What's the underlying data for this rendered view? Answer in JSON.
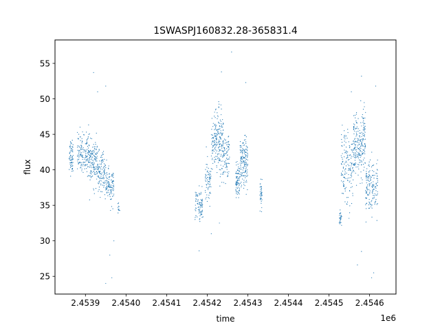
{
  "chart_data": {
    "type": "scatter",
    "title": "1SWASPJ160832.28-365831.4",
    "xlabel": "time",
    "ylabel": "flux",
    "x_offset_label": "1e6",
    "xlim": [
      2.453825,
      2.454665
    ],
    "ylim": [
      22.5,
      58.3
    ],
    "x_ticks": [
      2.4539,
      2.454,
      2.4541,
      2.4542,
      2.4543,
      2.4544,
      2.4545,
      2.4546
    ],
    "x_tick_labels": [
      "2.4539",
      "2.4540",
      "2.4541",
      "2.4542",
      "2.4543",
      "2.4544",
      "2.4545",
      "2.4546"
    ],
    "y_ticks": [
      25,
      30,
      35,
      40,
      45,
      50,
      55
    ],
    "y_tick_labels": [
      "25",
      "30",
      "35",
      "40",
      "45",
      "50",
      "55"
    ],
    "grid": false,
    "marker_color": "#1f77b4",
    "clusters": [
      {
        "x_start": 2.45386,
        "x_end": 2.45387,
        "y_center": 42.0,
        "spread": 1.2,
        "count": 70
      },
      {
        "x_start": 2.45388,
        "x_end": 2.45391,
        "y_center": 42.3,
        "spread": 1.4,
        "count": 160
      },
      {
        "x_start": 2.45391,
        "x_end": 2.45393,
        "y_center": 41.0,
        "spread": 1.5,
        "count": 130
      },
      {
        "x_start": 2.45393,
        "x_end": 2.45395,
        "y_center": 39.5,
        "spread": 1.4,
        "count": 110
      },
      {
        "x_start": 2.45395,
        "x_end": 2.45397,
        "y_center": 37.7,
        "spread": 1.2,
        "count": 110
      },
      {
        "x_start": 2.45398,
        "x_end": 2.453985,
        "y_center": 34.7,
        "spread": 0.4,
        "count": 12
      },
      {
        "x_start": 2.45417,
        "x_end": 2.45419,
        "y_center": 35.0,
        "spread": 1.1,
        "count": 90
      },
      {
        "x_start": 2.454195,
        "x_end": 2.45421,
        "y_center": 38.5,
        "spread": 1.5,
        "count": 70
      },
      {
        "x_start": 2.45421,
        "x_end": 2.45424,
        "y_center": 44.0,
        "spread": 2.2,
        "count": 220
      },
      {
        "x_start": 2.45424,
        "x_end": 2.454255,
        "y_center": 41.5,
        "spread": 1.8,
        "count": 80
      },
      {
        "x_start": 2.45427,
        "x_end": 2.45428,
        "y_center": 38.5,
        "spread": 1.2,
        "count": 80
      },
      {
        "x_start": 2.45428,
        "x_end": 2.4543,
        "y_center": 41.0,
        "spread": 1.7,
        "count": 160
      },
      {
        "x_start": 2.45433,
        "x_end": 2.454335,
        "y_center": 36.5,
        "spread": 1.0,
        "count": 40
      },
      {
        "x_start": 2.454525,
        "x_end": 2.45453,
        "y_center": 33.0,
        "spread": 0.6,
        "count": 25
      },
      {
        "x_start": 2.45453,
        "x_end": 2.45456,
        "y_center": 40.5,
        "spread": 2.5,
        "count": 160
      },
      {
        "x_start": 2.45456,
        "x_end": 2.45459,
        "y_center": 43.5,
        "spread": 2.3,
        "count": 230
      },
      {
        "x_start": 2.45459,
        "x_end": 2.45462,
        "y_center": 37.5,
        "spread": 2.0,
        "count": 160
      }
    ],
    "outliers": [
      {
        "x": 2.45395,
        "y": 24.0
      },
      {
        "x": 2.45396,
        "y": 28.0
      },
      {
        "x": 2.45397,
        "y": 30.0
      },
      {
        "x": 2.453965,
        "y": 24.8
      },
      {
        "x": 2.45393,
        "y": 51.0
      },
      {
        "x": 2.45395,
        "y": 51.8
      },
      {
        "x": 2.45392,
        "y": 53.7
      },
      {
        "x": 2.45418,
        "y": 28.6
      },
      {
        "x": 2.45421,
        "y": 31.0
      },
      {
        "x": 2.45423,
        "y": 32.5
      },
      {
        "x": 2.454235,
        "y": 53.8
      },
      {
        "x": 2.45426,
        "y": 56.6
      },
      {
        "x": 2.454295,
        "y": 52.3
      },
      {
        "x": 2.45457,
        "y": 26.6
      },
      {
        "x": 2.45458,
        "y": 28.5
      },
      {
        "x": 2.454605,
        "y": 24.8
      },
      {
        "x": 2.45461,
        "y": 25.5
      },
      {
        "x": 2.454615,
        "y": 51.8
      },
      {
        "x": 2.45458,
        "y": 53.2
      },
      {
        "x": 2.454555,
        "y": 51.0
      }
    ]
  }
}
